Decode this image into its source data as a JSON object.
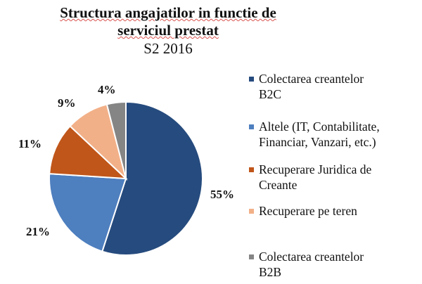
{
  "chart_data": {
    "type": "pie",
    "title": "Structura angajatilor in functie de serviciul prestat",
    "title_lines": [
      "Structura angajatilor in functie de",
      "serviciul prestat"
    ],
    "subtitle": "S2 2016",
    "legend_position": "right",
    "start_angle": "top, clockwise",
    "slices": [
      {
        "label": "Colectarea creantelor B2C",
        "legend_lines": [
          "Colectarea creantelor",
          "B2C"
        ],
        "value": 55,
        "data_label": "55%",
        "color": "#264b7e"
      },
      {
        "label": "Altele (IT, Contabilitate, Financiar, Vanzari, etc.)",
        "legend_lines": [
          "Altele (IT, Contabilitate,",
          "Financiar, Vanzari, etc.)"
        ],
        "value": 21,
        "data_label": "21%",
        "color": "#4e7fbf"
      },
      {
        "label": "Recuperare Juridica de Creante",
        "legend_lines": [
          "Recuperare Juridica de",
          "Creante"
        ],
        "value": 11,
        "data_label": "11%",
        "color": "#c0561a"
      },
      {
        "label": "Recuperare pe teren",
        "legend_lines": [
          "Recuperare pe teren",
          ""
        ],
        "value": 9,
        "data_label": "9%",
        "color": "#f2b088"
      },
      {
        "label": "Colectarea creantelor B2B",
        "legend_lines": [
          "Colectarea creantelor",
          "B2B"
        ],
        "value": 4,
        "data_label": "4%",
        "color": "#858585"
      }
    ]
  }
}
